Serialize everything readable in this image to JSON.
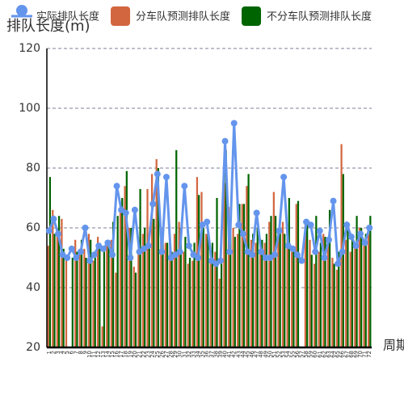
{
  "chart_data": {
    "type": "bar_line",
    "y_axis_label": "排队长度(m)",
    "x_axis_label": "周期",
    "categories": [
      "1",
      "2",
      "3",
      "4",
      "5",
      "6",
      "7",
      "8",
      "9",
      "10",
      "11",
      "12",
      "13",
      "14",
      "15",
      "16",
      "17",
      "18",
      "19",
      "20",
      "21",
      "22",
      "23",
      "24",
      "25",
      "26",
      "27",
      "28",
      "29",
      "30",
      "31",
      "32",
      "33",
      "34",
      "35",
      "36",
      "37",
      "38",
      "39",
      "40",
      "41",
      "42",
      "43",
      "44",
      "45",
      "46",
      "47",
      "48",
      "49",
      "50",
      "51",
      "52",
      "53",
      "54",
      "55",
      "56",
      "57",
      "58",
      "59",
      "60",
      "61",
      "62",
      "63",
      "64",
      "65",
      "66",
      "67",
      "68",
      "69",
      "70",
      "71",
      "72"
    ],
    "series": [
      {
        "name": "实际排队长度",
        "kind": "line",
        "color": "#6495ed",
        "values": [
          59,
          63,
          58,
          51,
          50,
          53,
          50,
          52,
          60,
          49,
          51,
          54,
          53,
          55,
          51,
          74,
          66,
          65,
          50,
          66,
          52,
          53,
          54,
          68,
          78,
          52,
          77,
          50,
          51,
          52,
          74,
          54,
          51,
          50,
          61,
          62,
          49,
          48,
          49,
          89,
          52,
          95,
          61,
          58,
          52,
          51,
          65,
          52,
          50,
          50,
          51,
          59,
          77,
          54,
          53,
          51,
          49,
          62,
          61,
          52,
          59,
          50,
          56,
          69,
          48,
          52,
          61,
          57,
          54,
          58,
          55,
          60
        ]
      },
      {
        "name": "分车队预测排队长度",
        "kind": "bar",
        "color": "#d2663f",
        "values": [
          54,
          66,
          60,
          63,
          50,
          20,
          56,
          52,
          53,
          58,
          49,
          57,
          27,
          55,
          56,
          45,
          68,
          74,
          60,
          47,
          52,
          58,
          73,
          78,
          83,
          60,
          55,
          54,
          58,
          62,
          52,
          48,
          49,
          77,
          72,
          58,
          49,
          52,
          43,
          75,
          67,
          60,
          58,
          68,
          74,
          56,
          55,
          53,
          55,
          62,
          72,
          60,
          62,
          60,
          52,
          68,
          20,
          62,
          56,
          48,
          52,
          58,
          55,
          50,
          46,
          88,
          56,
          52,
          54,
          60,
          56,
          58
        ]
      },
      {
        "name": "不分车队预测排队长度",
        "kind": "bar",
        "color": "#006400",
        "values": [
          77,
          58,
          64,
          53,
          20,
          50,
          52,
          56,
          50,
          56,
          50,
          55,
          52,
          54,
          62,
          64,
          70,
          79,
          60,
          45,
          73,
          60,
          55,
          63,
          80,
          58,
          55,
          52,
          86,
          60,
          57,
          50,
          55,
          71,
          60,
          58,
          55,
          70,
          48,
          86,
          60,
          57,
          68,
          68,
          78,
          58,
          60,
          56,
          58,
          64,
          64,
          60,
          58,
          70,
          52,
          69,
          20,
          62,
          51,
          64,
          55,
          57,
          66,
          48,
          52,
          78,
          60,
          56,
          64,
          60,
          58,
          64
        ]
      }
    ],
    "ylim": [
      20,
      120
    ],
    "yticks": [
      20,
      40,
      60,
      80,
      100,
      120
    ],
    "grid": true
  }
}
